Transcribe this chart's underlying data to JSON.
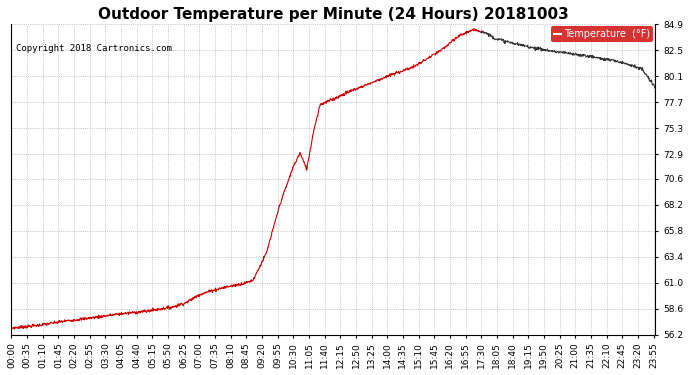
{
  "title": "Outdoor Temperature per Minute (24 Hours) 20181003",
  "copyright_text": "Copyright 2018 Cartronics.com",
  "legend_label": "Temperature  (°F)",
  "legend_bg": "#cc0000",
  "legend_text_color": "#ffffff",
  "line_color": "#cc0000",
  "line_color_end": "#333333",
  "background_color": "#ffffff",
  "grid_color": "#888888",
  "ylim": [
    56.2,
    84.9
  ],
  "yticks": [
    56.2,
    58.6,
    61.0,
    63.4,
    65.8,
    68.2,
    70.6,
    72.9,
    75.3,
    77.7,
    80.1,
    82.5,
    84.9
  ],
  "title_fontsize": 11,
  "copyright_fontsize": 6.5,
  "tick_fontsize": 6.5,
  "xtick_step": 35,
  "total_minutes": 1440,
  "split_hour": 17.5
}
